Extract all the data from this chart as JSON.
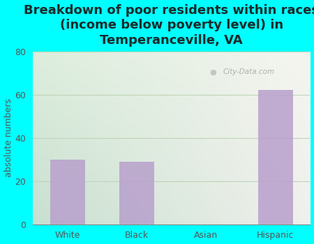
{
  "title": "Breakdown of poor residents within races\n(income below poverty level) in\nTemperanceville, VA",
  "categories": [
    "White",
    "Black",
    "Asian",
    "Hispanic"
  ],
  "values": [
    30,
    29,
    0,
    62
  ],
  "bar_color": "#b8a0cc",
  "ylabel": "absolute numbers",
  "ylim": [
    0,
    80
  ],
  "yticks": [
    0,
    20,
    40,
    60,
    80
  ],
  "background_outer": "#00ffff",
  "background_inner_tl": "#ddeedd",
  "background_inner_tr": "#f5f5f0",
  "background_inner_bl": "#c8e0d0",
  "background_inner_br": "#f0f0ec",
  "grid_color": "#c0d4b8",
  "title_color": "#1a2a2a",
  "axis_label_color": "#555555",
  "tick_color": "#555555",
  "watermark_text": "City-Data.com",
  "title_fontsize": 13,
  "ylabel_fontsize": 9,
  "tick_fontsize": 9
}
